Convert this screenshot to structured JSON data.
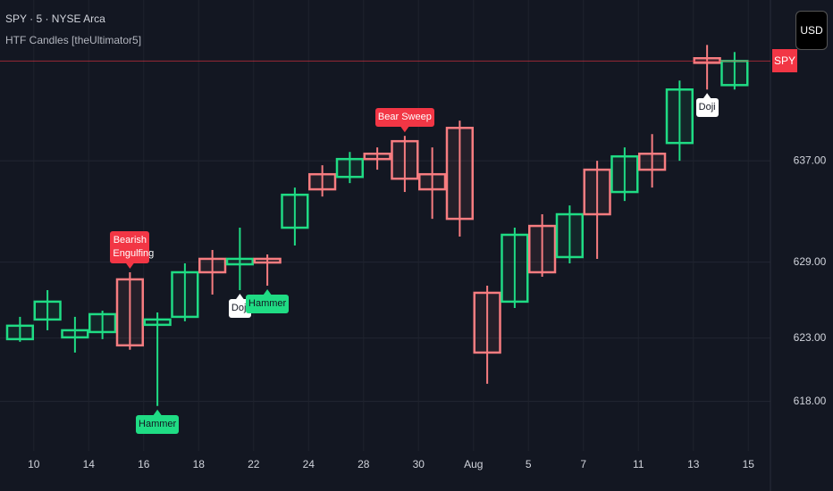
{
  "header": {
    "symbol": "SPY · 5 · NYSE Arca",
    "indicator": "HTF Candles [theUltimator5]",
    "currency": "USD",
    "price_badge": "SPY"
  },
  "chart_data": {
    "type": "candlestick",
    "categories": [
      null,
      "10",
      null,
      "14",
      null,
      "16",
      null,
      "18",
      null,
      "22",
      null,
      "24",
      null,
      "28",
      null,
      "30",
      null,
      "Aug",
      null,
      "5",
      null,
      "7",
      null,
      "11",
      null,
      "13",
      null,
      "15"
    ],
    "open": [
      622.92,
      624.47,
      623.06,
      623.48,
      627.64,
      624.05,
      624.68,
      629.26,
      628.83,
      629.26,
      631.72,
      635.94,
      635.73,
      637.56,
      638.55,
      635.94,
      639.6,
      626.58,
      625.88,
      631.86,
      629.4,
      636.3,
      634.54,
      637.56,
      638.41,
      645.1,
      642.98,
      null
    ],
    "high": [
      624.68,
      626.79,
      624.68,
      625.17,
      628.2,
      625.03,
      628.9,
      629.96,
      631.72,
      629.61,
      634.89,
      636.65,
      637.7,
      638.06,
      638.97,
      638.06,
      640.17,
      627.14,
      631.72,
      632.78,
      633.48,
      637.0,
      638.06,
      639.11,
      643.34,
      646.15,
      645.59,
      null
    ],
    "low": [
      622.71,
      623.62,
      621.86,
      622.92,
      622.08,
      617.64,
      624.33,
      626.44,
      626.79,
      627.14,
      630.31,
      634.18,
      635.24,
      636.3,
      634.54,
      632.42,
      631.02,
      619.4,
      625.38,
      627.85,
      628.9,
      629.26,
      633.83,
      634.89,
      637.0,
      642.63,
      642.63,
      null
    ],
    "close": [
      623.98,
      625.88,
      623.62,
      624.89,
      622.43,
      624.47,
      628.2,
      628.2,
      629.26,
      628.97,
      634.32,
      634.75,
      637.14,
      637.14,
      635.59,
      634.75,
      632.42,
      621.86,
      631.16,
      628.2,
      632.78,
      632.78,
      637.35,
      636.3,
      642.63,
      644.74,
      644.88,
      null
    ],
    "up_color": "#1fdc84",
    "down_color": "#f77c80",
    "ylim": [
      614.1,
      649.7
    ],
    "yticks": [
      {
        "value": 618,
        "label": "618.00"
      },
      {
        "value": 623,
        "label": "623.00"
      },
      {
        "value": 629,
        "label": "629.00"
      },
      {
        "value": 637,
        "label": "637.00"
      }
    ],
    "grid": true,
    "annotations": [
      {
        "index": 4,
        "text": "Bearish Engulfing",
        "position": "above",
        "color": "#f23645"
      },
      {
        "index": 5,
        "text": "Hammer",
        "position": "below",
        "color": "#1fdc84"
      },
      {
        "index": 8,
        "text": "Doji",
        "position": "below",
        "color": "#ffffff"
      },
      {
        "index": 9,
        "text": "Hammer",
        "position": "below",
        "color": "#1fdc84"
      },
      {
        "index": 14,
        "text": "Bear Sweep",
        "position": "above",
        "color": "#f23645"
      },
      {
        "index": 25,
        "text": "Doji",
        "position": "below",
        "color": "#ffffff"
      }
    ]
  }
}
